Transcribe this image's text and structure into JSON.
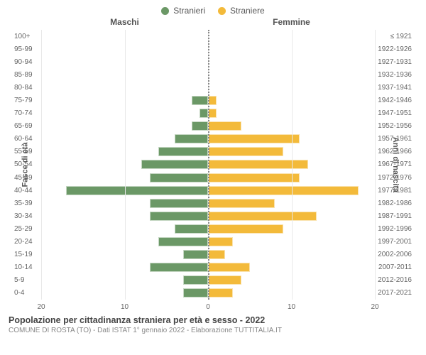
{
  "legend": {
    "male": {
      "label": "Stranieri",
      "color": "#6b9866"
    },
    "female": {
      "label": "Straniere",
      "color": "#f3ba3a"
    }
  },
  "headers": {
    "male": "Maschi",
    "female": "Femmine"
  },
  "axes": {
    "left_title": "Fasce di età",
    "right_title": "Anni di nascita",
    "xmax": 20,
    "xticks": [
      20,
      10,
      0,
      10,
      20
    ],
    "grid_color": "#e8e8e8",
    "centerline_color": "#888888"
  },
  "chart": {
    "type": "population-pyramid",
    "background": "#ffffff",
    "bar_color_male": "#6b9866",
    "bar_color_female": "#f3ba3a",
    "rows": [
      {
        "age": "100+",
        "birth": "≤ 1921",
        "m": 0,
        "f": 0
      },
      {
        "age": "95-99",
        "birth": "1922-1926",
        "m": 0,
        "f": 0
      },
      {
        "age": "90-94",
        "birth": "1927-1931",
        "m": 0,
        "f": 0
      },
      {
        "age": "85-89",
        "birth": "1932-1936",
        "m": 0,
        "f": 0
      },
      {
        "age": "80-84",
        "birth": "1937-1941",
        "m": 0,
        "f": 0
      },
      {
        "age": "75-79",
        "birth": "1942-1946",
        "m": 2,
        "f": 1
      },
      {
        "age": "70-74",
        "birth": "1947-1951",
        "m": 1,
        "f": 1
      },
      {
        "age": "65-69",
        "birth": "1952-1956",
        "m": 2,
        "f": 4
      },
      {
        "age": "60-64",
        "birth": "1957-1961",
        "m": 4,
        "f": 11
      },
      {
        "age": "55-59",
        "birth": "1962-1966",
        "m": 6,
        "f": 9
      },
      {
        "age": "50-54",
        "birth": "1967-1971",
        "m": 8,
        "f": 12
      },
      {
        "age": "45-49",
        "birth": "1972-1976",
        "m": 7,
        "f": 11
      },
      {
        "age": "40-44",
        "birth": "1977-1981",
        "m": 17,
        "f": 18
      },
      {
        "age": "35-39",
        "birth": "1982-1986",
        "m": 7,
        "f": 8
      },
      {
        "age": "30-34",
        "birth": "1987-1991",
        "m": 7,
        "f": 13
      },
      {
        "age": "25-29",
        "birth": "1992-1996",
        "m": 4,
        "f": 9
      },
      {
        "age": "20-24",
        "birth": "1997-2001",
        "m": 6,
        "f": 3
      },
      {
        "age": "15-19",
        "birth": "2002-2006",
        "m": 3,
        "f": 2
      },
      {
        "age": "10-14",
        "birth": "2007-2011",
        "m": 7,
        "f": 5
      },
      {
        "age": "5-9",
        "birth": "2012-2016",
        "m": 3,
        "f": 4
      },
      {
        "age": "0-4",
        "birth": "2017-2021",
        "m": 3,
        "f": 3
      }
    ]
  },
  "footer": {
    "title": "Popolazione per cittadinanza straniera per età e sesso - 2022",
    "subtitle": "COMUNE DI ROSTA (TO) - Dati ISTAT 1° gennaio 2022 - Elaborazione TUTTITALIA.IT"
  }
}
